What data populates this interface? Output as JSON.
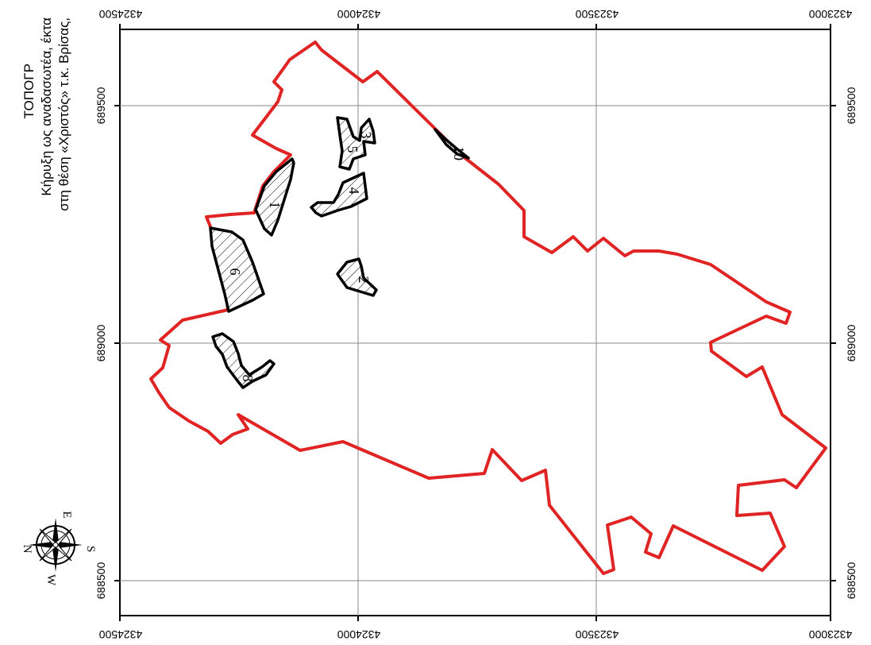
{
  "title": {
    "line1": "ΤΟΠΟΓΡ",
    "line2": "Κήρυξη ως αναδασωτέα, έκτα",
    "line3": "στη θέση «Χριστός» τ.κ. Βρίσας,"
  },
  "grid": {
    "northing_labels": [
      "4324500",
      "4324000",
      "4323500",
      "4323000"
    ],
    "easting_labels": [
      "689500",
      "689000",
      "688500"
    ]
  },
  "parcels": [
    {
      "id": "parcel-1",
      "label": "1"
    },
    {
      "id": "parcel-2",
      "label": "2"
    },
    {
      "id": "parcel-3",
      "label": "3"
    },
    {
      "id": "parcel-4",
      "label": "4"
    },
    {
      "id": "parcel-5",
      "label": "5"
    },
    {
      "id": "parcel-6",
      "label": "6"
    },
    {
      "id": "parcel-8",
      "label": "8"
    },
    {
      "id": "parcel-10",
      "label": "10"
    }
  ],
  "compass": {
    "n": "N",
    "e": "E",
    "s": "S",
    "w": "W"
  },
  "colors": {
    "boundary": "#e02424",
    "parcels": "#000000",
    "grid": "#8a8a8a"
  }
}
